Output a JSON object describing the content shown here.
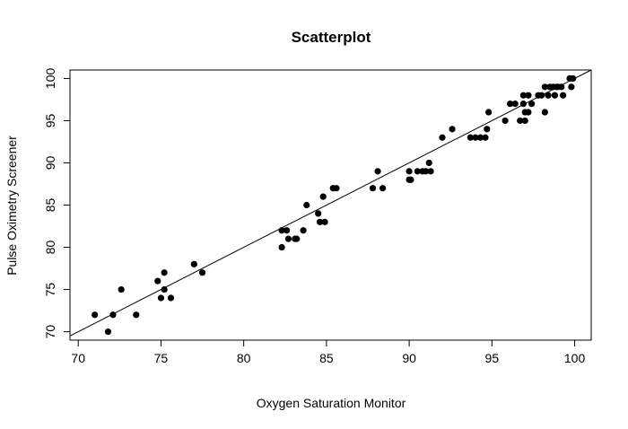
{
  "chart_data": {
    "type": "scatter",
    "title": "Scatterplot",
    "xlabel": "Oxygen Saturation Monitor",
    "ylabel": "Pulse Oximetry Screener",
    "xlim": [
      69.5,
      101
    ],
    "ylim": [
      69,
      101
    ],
    "xticks": [
      70,
      75,
      80,
      85,
      90,
      95,
      100
    ],
    "yticks": [
      70,
      75,
      80,
      85,
      90,
      95,
      100
    ],
    "grid": false,
    "reference_line": {
      "intercept": 0,
      "slope": 1
    },
    "colors": {
      "points": "#000000",
      "line": "#000000",
      "box": "#000000"
    },
    "points": [
      [
        71.0,
        72
      ],
      [
        71.8,
        70
      ],
      [
        72.1,
        72
      ],
      [
        72.6,
        75
      ],
      [
        73.5,
        72
      ],
      [
        74.8,
        76
      ],
      [
        75.0,
        74
      ],
      [
        75.2,
        75
      ],
      [
        75.2,
        77
      ],
      [
        75.6,
        74
      ],
      [
        77.0,
        78
      ],
      [
        77.5,
        77
      ],
      [
        82.3,
        82
      ],
      [
        82.3,
        80
      ],
      [
        82.6,
        82
      ],
      [
        82.7,
        81
      ],
      [
        83.1,
        81
      ],
      [
        83.2,
        81
      ],
      [
        83.6,
        82
      ],
      [
        83.8,
        85
      ],
      [
        84.5,
        84
      ],
      [
        84.6,
        83
      ],
      [
        84.8,
        86
      ],
      [
        84.9,
        83
      ],
      [
        85.4,
        87
      ],
      [
        85.6,
        87
      ],
      [
        87.8,
        87
      ],
      [
        88.1,
        89
      ],
      [
        88.4,
        87
      ],
      [
        90.0,
        89
      ],
      [
        90.0,
        88
      ],
      [
        90.1,
        88
      ],
      [
        90.5,
        89
      ],
      [
        90.8,
        89
      ],
      [
        91.0,
        89
      ],
      [
        91.2,
        90
      ],
      [
        91.3,
        89
      ],
      [
        92.0,
        93
      ],
      [
        92.6,
        94
      ],
      [
        93.7,
        93
      ],
      [
        94.0,
        93
      ],
      [
        94.3,
        93
      ],
      [
        94.6,
        93
      ],
      [
        94.7,
        94
      ],
      [
        94.8,
        96
      ],
      [
        95.8,
        95
      ],
      [
        96.1,
        97
      ],
      [
        96.4,
        97
      ],
      [
        96.7,
        95
      ],
      [
        96.9,
        97
      ],
      [
        96.9,
        98
      ],
      [
        97.0,
        96
      ],
      [
        97.0,
        95
      ],
      [
        97.2,
        96
      ],
      [
        97.2,
        98
      ],
      [
        97.4,
        97
      ],
      [
        97.8,
        98
      ],
      [
        98.0,
        98
      ],
      [
        98.2,
        99
      ],
      [
        98.2,
        96
      ],
      [
        98.4,
        98
      ],
      [
        98.5,
        99
      ],
      [
        98.7,
        99
      ],
      [
        98.8,
        98
      ],
      [
        98.9,
        99
      ],
      [
        99.0,
        99
      ],
      [
        99.2,
        99
      ],
      [
        99.3,
        98
      ],
      [
        99.7,
        100
      ],
      [
        99.8,
        99
      ],
      [
        99.9,
        100
      ]
    ]
  }
}
